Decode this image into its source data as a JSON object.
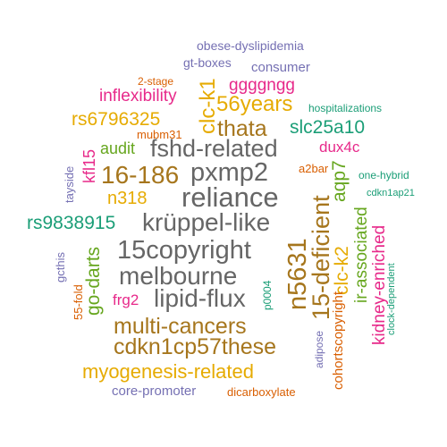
{
  "palette": {
    "green": "#1b9e77",
    "orange": "#d95f02",
    "purple": "#7570b3",
    "magenta": "#e7298a",
    "olive": "#66a61e",
    "gold": "#e6ab02",
    "brown": "#a6761d",
    "gray": "#666666"
  },
  "words": [
    {
      "id": "w-obese-dyslipidemia",
      "text": "obese-dyslipidemia",
      "color": "purple"
    },
    {
      "id": "w-gt-boxes",
      "text": "gt-boxes",
      "color": "purple"
    },
    {
      "id": "w-consumer",
      "text": "consumer",
      "color": "purple"
    },
    {
      "id": "w-2-stage",
      "text": "2-stage",
      "color": "orange"
    },
    {
      "id": "w-ggggngg",
      "text": "ggggngg",
      "color": "magenta"
    },
    {
      "id": "w-inflexibility",
      "text": "inflexibility",
      "color": "magenta"
    },
    {
      "id": "w-clc-k1",
      "text": "clc-k1",
      "color": "gold"
    },
    {
      "id": "w-56years",
      "text": "56years",
      "color": "gold"
    },
    {
      "id": "w-hospitalizations",
      "text": "hospitalizations",
      "color": "green"
    },
    {
      "id": "w-rs6796325",
      "text": "rs6796325",
      "color": "gold"
    },
    {
      "id": "w-thata",
      "text": "thata",
      "color": "brown"
    },
    {
      "id": "w-slc25a10",
      "text": "slc25a10",
      "color": "green"
    },
    {
      "id": "w-mubm31",
      "text": "mubm31",
      "color": "orange"
    },
    {
      "id": "w-kfl15",
      "text": "kfl15",
      "color": "magenta"
    },
    {
      "id": "w-audit",
      "text": "audit",
      "color": "olive"
    },
    {
      "id": "w-fshd-related",
      "text": "fshd-related",
      "color": "gray"
    },
    {
      "id": "w-dux4c",
      "text": "dux4c",
      "color": "magenta"
    },
    {
      "id": "w-tayside",
      "text": "tayside",
      "color": "purple"
    },
    {
      "id": "w-16-186",
      "text": "16-186",
      "color": "brown"
    },
    {
      "id": "w-pxmp2",
      "text": "pxmp2",
      "color": "gray"
    },
    {
      "id": "w-a2bar",
      "text": "a2bar",
      "color": "orange"
    },
    {
      "id": "w-aqp7",
      "text": "aqp7",
      "color": "olive"
    },
    {
      "id": "w-one-hybrid",
      "text": "one-hybrid",
      "color": "green"
    },
    {
      "id": "w-15-deficient",
      "text": "15-deficient",
      "color": "brown"
    },
    {
      "id": "w-n318",
      "text": "n318",
      "color": "gold"
    },
    {
      "id": "w-reliance",
      "text": "reliance",
      "color": "gray"
    },
    {
      "id": "w-cdkn1ap21",
      "text": "cdkn1ap21",
      "color": "green"
    },
    {
      "id": "w-rs9838915",
      "text": "rs9838915",
      "color": "green"
    },
    {
      "id": "w-kruppel-like",
      "text": "krüppel-like",
      "color": "gray"
    },
    {
      "id": "w-clc-k2",
      "text": "clc-k2",
      "color": "gold"
    },
    {
      "id": "w-ir-associated",
      "text": "ir-associated",
      "color": "olive"
    },
    {
      "id": "w-kidney-enriched",
      "text": "kidney-enriched",
      "color": "magenta"
    },
    {
      "id": "w-gcthis",
      "text": "gcthis",
      "color": "purple"
    },
    {
      "id": "w-15copyright",
      "text": "15copyright",
      "color": "gray"
    },
    {
      "id": "w-n5631",
      "text": "n5631",
      "color": "brown"
    },
    {
      "id": "w-go-darts",
      "text": "go-darts",
      "color": "olive"
    },
    {
      "id": "w-melbourne",
      "text": "melbourne",
      "color": "gray"
    },
    {
      "id": "w-55-fold",
      "text": "55-fold",
      "color": "orange"
    },
    {
      "id": "w-clock-dependent",
      "text": "clock-dependent",
      "color": "green"
    },
    {
      "id": "w-frg2",
      "text": "frg2",
      "color": "magenta"
    },
    {
      "id": "w-lipid-flux",
      "text": "lipid-flux",
      "color": "gray"
    },
    {
      "id": "w-p0004",
      "text": "p0004",
      "color": "green"
    },
    {
      "id": "w-cohortscopyright",
      "text": "cohortscopyright",
      "color": "orange"
    },
    {
      "id": "w-multi-cancers",
      "text": "multi-cancers",
      "color": "brown"
    },
    {
      "id": "w-adipose",
      "text": "adipose",
      "color": "purple"
    },
    {
      "id": "w-cdkn1cp57these",
      "text": "cdkn1cp57these",
      "color": "brown"
    },
    {
      "id": "w-myogenesis-related",
      "text": "myogenesis-related",
      "color": "gold"
    },
    {
      "id": "w-core-promoter",
      "text": "core-promoter",
      "color": "purple"
    },
    {
      "id": "w-dicarboxylate",
      "text": "dicarboxylate",
      "color": "orange"
    }
  ]
}
